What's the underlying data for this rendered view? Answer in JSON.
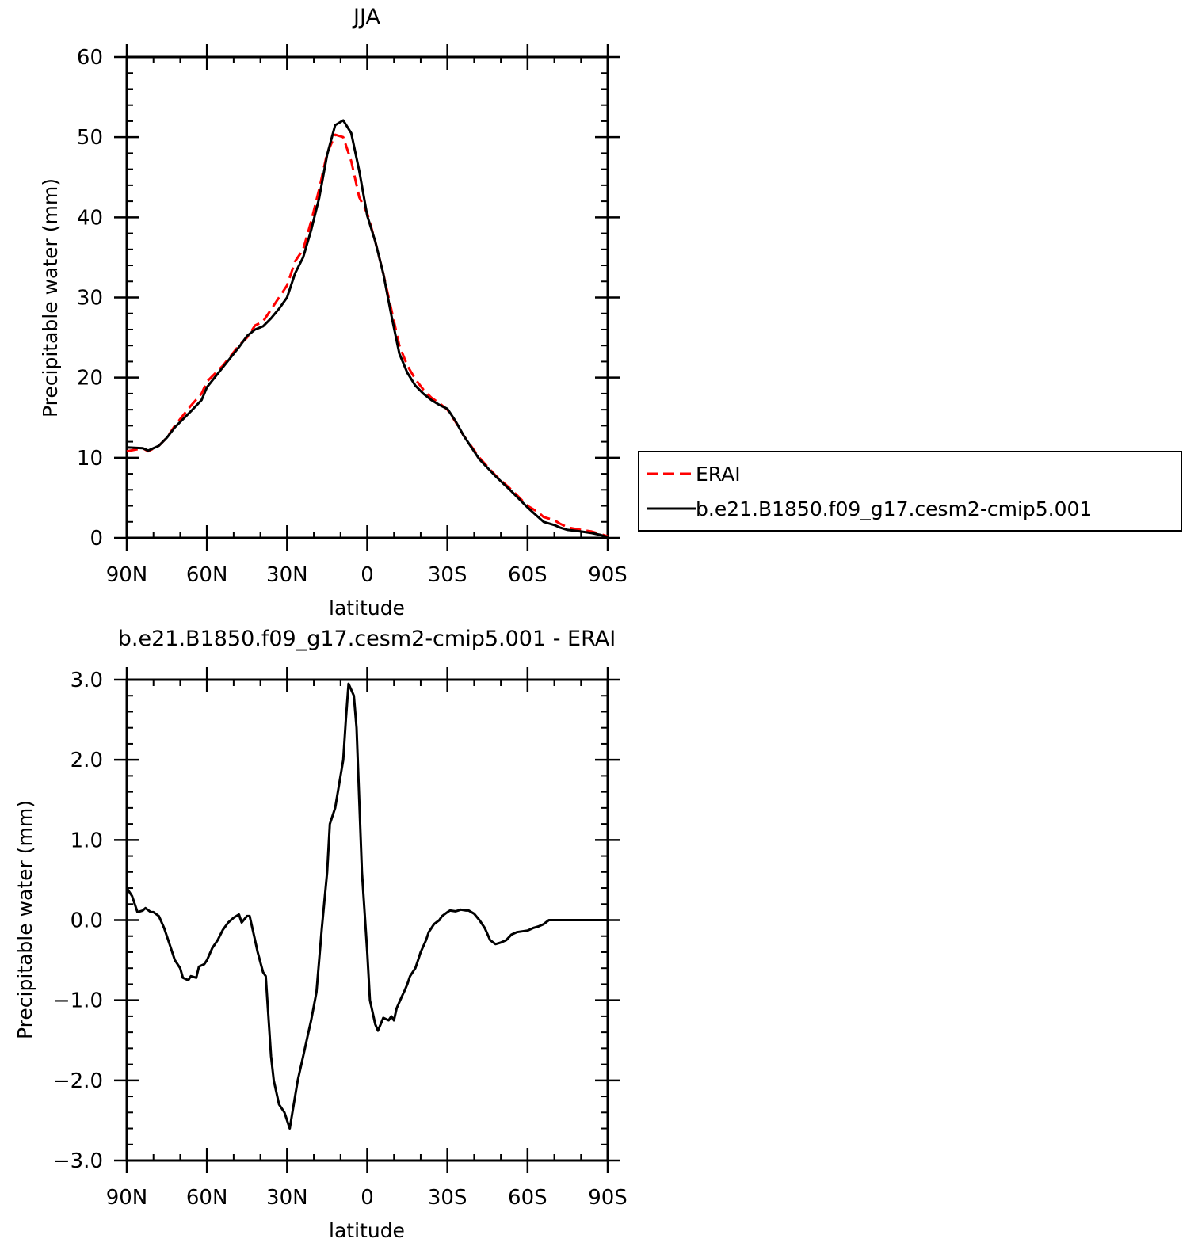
{
  "chart_data": [
    {
      "type": "line",
      "title": "JJA",
      "xlabel": "latitude",
      "ylabel": "Precipitable water (mm)",
      "xlim": [
        90,
        -90
      ],
      "ylim": [
        0,
        60
      ],
      "x_ticks": [
        90,
        60,
        30,
        0,
        -30,
        -60,
        -90
      ],
      "x_tick_labels": [
        "90N",
        "60N",
        "30N",
        "0",
        "30S",
        "60S",
        "90S"
      ],
      "y_ticks": [
        0,
        10,
        20,
        30,
        40,
        50,
        60
      ],
      "y_tick_labels": [
        "0",
        "10",
        "20",
        "30",
        "40",
        "50",
        "60"
      ],
      "grid": false,
      "legend_position": "right, outside plot",
      "series": [
        {
          "name": "ERAI",
          "color": "#ff0000",
          "dash": "dashed",
          "x": [
            90,
            84,
            82,
            78,
            75,
            72,
            66,
            62,
            60,
            54,
            48,
            45,
            42,
            39,
            36,
            33,
            30,
            27,
            24,
            21,
            18,
            15,
            12,
            9,
            6,
            3,
            0,
            -3,
            -6,
            -9,
            -12,
            -15,
            -18,
            -21,
            -24,
            -27,
            -30,
            -33,
            -36,
            -42,
            -48,
            -54,
            -60,
            -64,
            -66,
            -70,
            -72,
            -75,
            -80,
            -84,
            -87,
            -90
          ],
          "y": [
            10.8,
            11.2,
            10.8,
            11.5,
            12.5,
            14,
            16.5,
            18,
            19.5,
            21.5,
            24,
            25,
            26.5,
            27,
            28.5,
            30,
            31.5,
            34.5,
            36,
            39.5,
            43.5,
            48,
            50.3,
            50,
            47,
            42.5,
            40.5,
            37,
            33,
            28.5,
            24,
            21.5,
            19.8,
            18.5,
            17.5,
            16.8,
            16,
            14.5,
            12.8,
            10,
            7.8,
            6,
            4,
            3.2,
            2.6,
            2.2,
            1.8,
            1.3,
            1,
            0.8,
            0.5,
            0.2
          ]
        },
        {
          "name": "b.e21.B1850.f09_g17.cesm2-cmip5.001",
          "color": "#000000",
          "dash": "solid",
          "x": [
            90,
            84,
            82,
            78,
            75,
            72,
            66,
            62,
            60,
            54,
            48,
            45,
            42,
            39,
            36,
            33,
            30,
            27,
            24,
            21,
            18,
            15,
            12,
            9,
            6,
            3,
            0,
            -3,
            -6,
            -9,
            -12,
            -15,
            -18,
            -21,
            -24,
            -27,
            -30,
            -33,
            -36,
            -42,
            -48,
            -54,
            -60,
            -64,
            -66,
            -70,
            -72,
            -75,
            -80,
            -84,
            -87,
            -90
          ],
          "y": [
            11.3,
            11.2,
            10.9,
            11.5,
            12.5,
            13.8,
            15.8,
            17.2,
            18.8,
            21.3,
            23.8,
            25.2,
            26,
            26.4,
            27.4,
            28.6,
            30,
            33,
            35,
            38.4,
            42.4,
            47.8,
            51.5,
            52.1,
            50.5,
            45.8,
            40.2,
            37,
            33,
            27.8,
            23,
            20.6,
            19,
            18,
            17.2,
            16.6,
            16.1,
            14.6,
            12.8,
            9.8,
            7.7,
            5.8,
            3.8,
            2.6,
            2,
            1.6,
            1.3,
            1,
            0.8,
            0.6,
            0.4,
            0.1
          ]
        }
      ]
    },
    {
      "type": "line",
      "title": "b.e21.B1850.f09_g17.cesm2-cmip5.001 - ERAI",
      "xlabel": "latitude",
      "ylabel": "Precipitable water (mm)",
      "xlim": [
        90,
        -90
      ],
      "ylim": [
        -3.0,
        3.0
      ],
      "x_ticks": [
        90,
        60,
        30,
        0,
        -30,
        -60,
        -90
      ],
      "x_tick_labels": [
        "90N",
        "60N",
        "30N",
        "0",
        "30S",
        "60S",
        "90S"
      ],
      "y_ticks": [
        3.0,
        2.0,
        1.0,
        0.0,
        -1.0,
        -2.0,
        -3.0
      ],
      "y_tick_labels": [
        "3.0",
        "2.0",
        "1.0",
        "0.0",
        "-1.0",
        "-2.0",
        "-3.0"
      ],
      "grid": false,
      "series": [
        {
          "color": "#000000",
          "dash": "solid",
          "x": [
            90,
            88,
            86,
            84,
            83,
            81,
            80,
            78,
            76,
            74,
            72,
            70,
            69,
            67,
            66,
            64,
            63,
            61,
            60,
            58,
            56,
            54,
            52,
            51,
            50,
            49,
            48,
            47,
            45,
            44,
            42,
            41,
            39,
            38,
            36,
            35,
            33,
            31,
            29,
            27,
            26,
            24,
            22,
            21,
            19,
            17,
            15,
            14,
            12,
            10,
            9,
            8,
            7,
            5,
            4,
            3,
            2,
            0,
            -1,
            -3,
            -4,
            -5,
            -6,
            -8,
            -9,
            -10,
            -11,
            -13,
            -14,
            -15,
            -16,
            -18,
            -19,
            -20,
            -22,
            -23,
            -25,
            -27,
            -28,
            -30,
            -31,
            -33,
            -34,
            -35,
            -37,
            -38,
            -39,
            -40,
            -42,
            -44,
            -46,
            -48,
            -50,
            -52,
            -54,
            -56,
            -58,
            -60,
            -62,
            -64,
            -66,
            -68,
            -70,
            -72,
            -74,
            -76,
            -78,
            -80,
            -82,
            -84,
            -86,
            -88,
            -90
          ],
          "y": [
            0.4,
            0.3,
            0.1,
            0.12,
            0.15,
            0.1,
            0.1,
            0.05,
            -0.1,
            -0.3,
            -0.5,
            -0.6,
            -0.72,
            -0.75,
            -0.7,
            -0.72,
            -0.58,
            -0.55,
            -0.5,
            -0.35,
            -0.25,
            -0.12,
            -0.03,
            0,
            0.03,
            0.05,
            0.07,
            -0.03,
            0.05,
            0.05,
            -0.25,
            -0.4,
            -0.65,
            -0.7,
            -1.7,
            -2.0,
            -2.3,
            -2.4,
            -2.6,
            -2.2,
            -2.0,
            -1.7,
            -1.4,
            -1.25,
            -0.9,
            -0.1,
            0.6,
            1.2,
            1.4,
            1.8,
            2.0,
            2.5,
            2.95,
            2.8,
            2.4,
            1.5,
            0.6,
            -0.4,
            -1.0,
            -1.3,
            -1.38,
            -1.3,
            -1.22,
            -1.25,
            -1.2,
            -1.25,
            -1.1,
            -0.95,
            -0.88,
            -0.8,
            -0.7,
            -0.6,
            -0.5,
            -0.4,
            -0.25,
            -0.15,
            -0.05,
            0,
            0.05,
            0.1,
            0.12,
            0.11,
            0.12,
            0.13,
            0.12,
            0.12,
            0.1,
            0.08,
            0,
            -0.1,
            -0.25,
            -0.3,
            -0.28,
            -0.25,
            -0.18,
            -0.15,
            -0.14,
            -0.13,
            -0.1,
            -0.08,
            -0.05,
            0,
            0,
            0,
            0,
            0,
            0,
            0,
            0,
            0,
            0,
            0,
            0
          ]
        }
      ]
    }
  ]
}
